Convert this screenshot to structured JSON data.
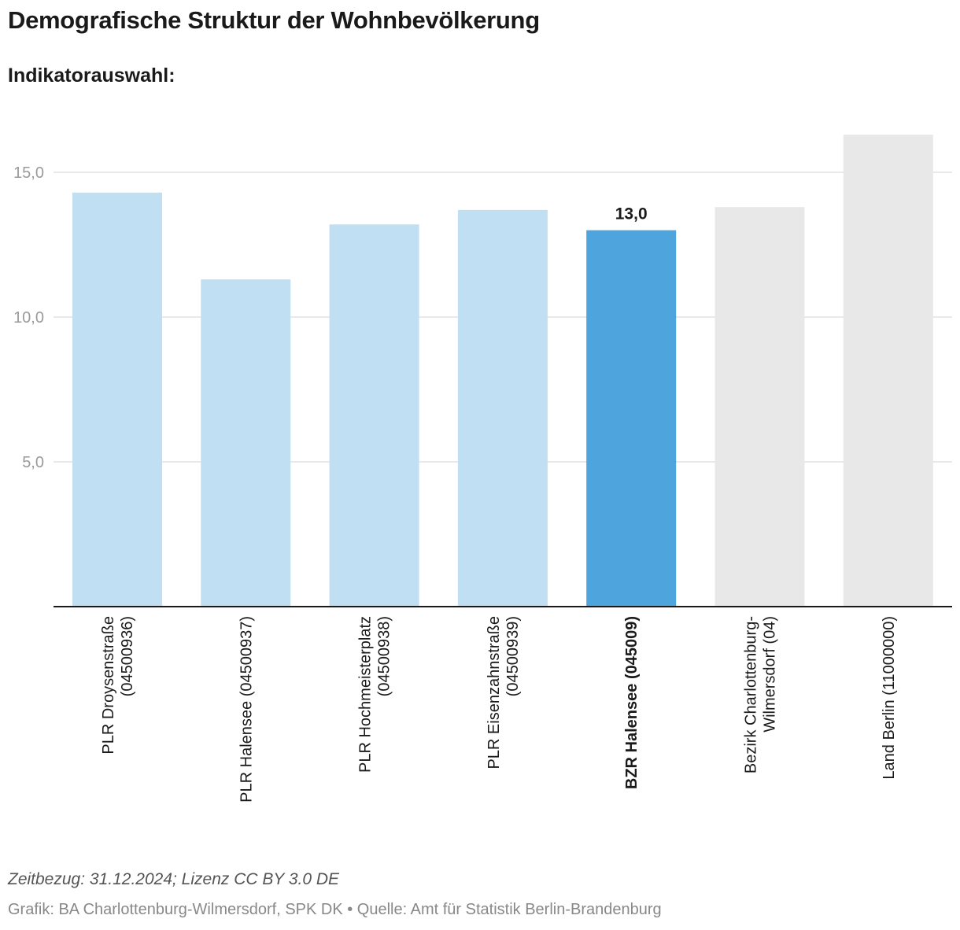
{
  "header": {
    "title": "Demografische Struktur der Wohnbevölkerung",
    "subtitle": "Indikatorauswahl:"
  },
  "footer": {
    "note": "Zeitbezug: 31.12.2024; Lizenz CC BY 3.0 DE",
    "source": "Grafik: BA Charlottenburg-Wilmersdorf, SPK DK • Quelle: Amt für Statistik Berlin-Brandenburg"
  },
  "colors": {
    "plr": "#c0dff2",
    "highlight": "#4ea5de",
    "reference": "#e8e8e8",
    "grid": "#e2e2e2",
    "axis": "#1a1a1a"
  },
  "chart_data": {
    "type": "bar",
    "title": "Demografische Struktur der Wohnbevölkerung",
    "xlabel": "",
    "ylabel": "",
    "ylim": [
      0,
      16.3
    ],
    "yticks": [
      5.0,
      10.0,
      15.0
    ],
    "ytick_labels": [
      "5,0",
      "10,0",
      "15,0"
    ],
    "grid": true,
    "categories": [
      [
        "PLR Droysenstraße",
        "(04500936)"
      ],
      [
        "PLR Halensee (04500937)"
      ],
      [
        "PLR Hochmeisterplatz",
        "(04500938)"
      ],
      [
        "PLR Eisenzahnstraße",
        "(04500939)"
      ],
      [
        "BZR Halensee (045009)"
      ],
      [
        "Bezirk Charlottenburg-",
        "Wilmersdorf (04)"
      ],
      [
        "Land Berlin (11000000)"
      ]
    ],
    "values": [
      14.3,
      11.3,
      13.2,
      13.7,
      13.0,
      13.8,
      16.3
    ],
    "groups": [
      "plr",
      "plr",
      "plr",
      "plr",
      "highlight",
      "reference",
      "reference"
    ],
    "highlight_index": 4,
    "highlight_value_label": "13,0"
  }
}
